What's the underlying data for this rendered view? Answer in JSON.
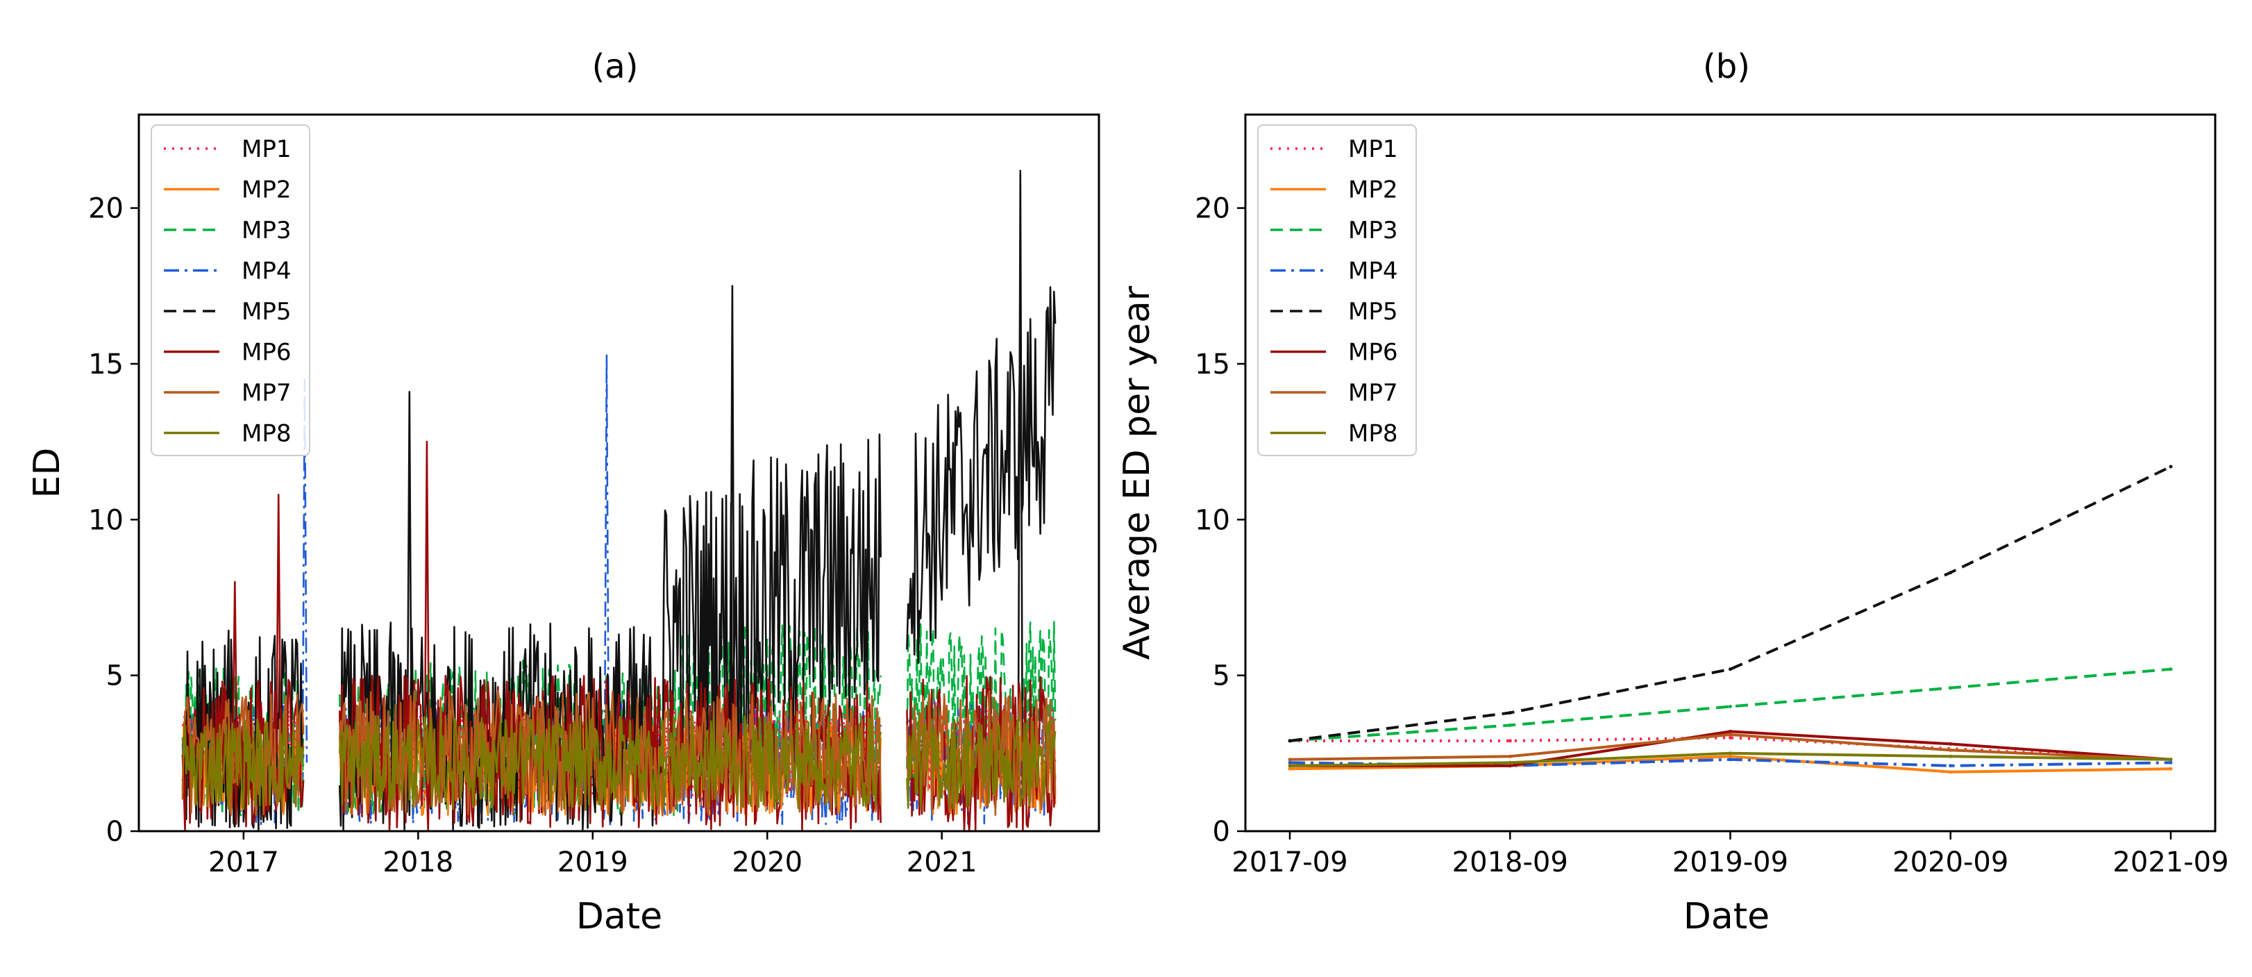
{
  "colors": {
    "MP1": "#ff1f4b",
    "MP2": "#ff7f0e",
    "MP3": "#00b140",
    "MP4": "#1f5bd6",
    "MP5": "#111111",
    "MP6": "#9a0a0a",
    "MP7": "#b85a1c",
    "MP8": "#7a7a00"
  },
  "chart_data": [
    {
      "panel": "(a)",
      "type": "line",
      "title": "(a)",
      "xlabel": "Date",
      "ylabel": "ED",
      "xticks": [
        "2017",
        "2018",
        "2019",
        "2020",
        "2021"
      ],
      "xlim": [
        2016.4,
        2021.9
      ],
      "ylim": [
        0,
        23
      ],
      "yticks": [
        "0",
        "5",
        "10",
        "15",
        "20"
      ],
      "legend": [
        "MP1",
        "MP2",
        "MP3",
        "MP4",
        "MP5",
        "MP6",
        "MP7",
        "MP8"
      ],
      "legend_location": "top-left",
      "series_styles": {
        "MP1": "dotted",
        "MP2": "solid",
        "MP3": "dashed",
        "MP4": "dashdot",
        "MP5": "dashed",
        "MP6": "solid",
        "MP7": "solid",
        "MP8": "solid"
      },
      "series_summary": [
        {
          "name": "MP1",
          "start": 2016.65,
          "end": 2021.65,
          "base": 2.5,
          "amplitude": 1.5
        },
        {
          "name": "MP2",
          "start": 2016.65,
          "end": 2021.65,
          "base": 2.0,
          "amplitude": 1.5
        },
        {
          "name": "MP3",
          "start": 2016.65,
          "end": 2021.65,
          "base": 3.0,
          "amplitude": 2.5
        },
        {
          "name": "MP4",
          "start": 2016.65,
          "end": 2021.65,
          "base": 2.2,
          "amplitude": 2.0
        },
        {
          "name": "MP5",
          "start": 2016.65,
          "end": 2021.65,
          "base": 2.5,
          "amplitude": 4.0
        },
        {
          "name": "MP6",
          "start": 2016.65,
          "end": 2021.65,
          "base": 2.5,
          "amplitude": 2.5
        },
        {
          "name": "MP7",
          "start": 2016.65,
          "end": 2021.65,
          "base": 2.5,
          "amplitude": 2.0
        },
        {
          "name": "MP8",
          "start": 2016.65,
          "end": 2021.65,
          "base": 2.2,
          "amplitude": 1.5
        }
      ],
      "gaps": [
        [
          2017.35,
          2017.55
        ],
        [
          2020.65,
          2020.8
        ]
      ],
      "notable_peaks": [
        {
          "series": "MP5",
          "x": 2021.45,
          "y": 21.2
        },
        {
          "series": "MP5",
          "x": 2019.8,
          "y": 17.5
        },
        {
          "series": "MP4",
          "x": 2019.08,
          "y": 15.3
        },
        {
          "series": "MP4",
          "x": 2017.35,
          "y": 14.5
        },
        {
          "series": "MP5",
          "x": 2017.95,
          "y": 14.1
        },
        {
          "series": "MP6",
          "x": 2018.05,
          "y": 12.5
        },
        {
          "series": "MP6",
          "x": 2017.2,
          "y": 10.8
        },
        {
          "series": "MP6",
          "x": 2016.95,
          "y": 8.0
        }
      ]
    },
    {
      "panel": "(b)",
      "type": "line",
      "title": "(b)",
      "xlabel": "Date",
      "ylabel": "Average ED per year",
      "categories": [
        "2017-09",
        "2018-09",
        "2019-09",
        "2020-09",
        "2021-09"
      ],
      "ylim": [
        0,
        23
      ],
      "yticks": [
        "0",
        "5",
        "10",
        "15",
        "20"
      ],
      "legend": [
        "MP1",
        "MP2",
        "MP3",
        "MP4",
        "MP5",
        "MP6",
        "MP7",
        "MP8"
      ],
      "legend_location": "top-left",
      "series": [
        {
          "name": "MP1",
          "style": "dotted",
          "x": [
            0,
            1,
            2,
            4
          ],
          "values": [
            2.9,
            2.9,
            3.0,
            2.3
          ]
        },
        {
          "name": "MP2",
          "style": "solid",
          "x": [
            0,
            1,
            2,
            3,
            4
          ],
          "values": [
            2.0,
            2.1,
            2.4,
            1.9,
            2.0
          ]
        },
        {
          "name": "MP3",
          "style": "dashed",
          "x": [
            0,
            1,
            2,
            3,
            4
          ],
          "values": [
            2.9,
            3.4,
            4.0,
            4.6,
            5.2
          ]
        },
        {
          "name": "MP4",
          "style": "dashdot",
          "x": [
            0,
            1,
            2,
            3,
            4
          ],
          "values": [
            2.2,
            2.1,
            2.3,
            2.1,
            2.2
          ]
        },
        {
          "name": "MP5",
          "style": "dashed",
          "x": [
            0,
            1,
            2,
            3,
            4
          ],
          "values": [
            2.9,
            3.8,
            5.2,
            8.3,
            11.7
          ]
        },
        {
          "name": "MP6",
          "style": "solid",
          "x": [
            0,
            1,
            2,
            3,
            4
          ],
          "values": [
            2.1,
            2.1,
            3.2,
            2.8,
            2.3
          ]
        },
        {
          "name": "MP7",
          "style": "solid",
          "x": [
            0,
            1,
            2,
            3,
            4
          ],
          "values": [
            2.3,
            2.4,
            3.1,
            2.6,
            2.3
          ]
        },
        {
          "name": "MP8",
          "style": "solid",
          "x": [
            0,
            1,
            2,
            3,
            4
          ],
          "values": [
            2.1,
            2.2,
            2.5,
            2.4,
            2.3
          ]
        }
      ]
    }
  ]
}
